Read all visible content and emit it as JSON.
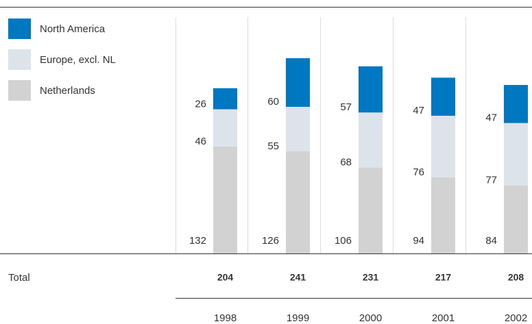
{
  "chart_data": {
    "type": "stacked_bar",
    "categories": [
      "1998",
      "1999",
      "2000",
      "2001",
      "2002"
    ],
    "series": [
      {
        "name": "Netherlands",
        "color": "#d2d2d2",
        "values": [
          132,
          126,
          106,
          94,
          84
        ]
      },
      {
        "name": "Europe, excl. NL",
        "color": "#dce3ea",
        "values": [
          46,
          55,
          68,
          76,
          77
        ]
      },
      {
        "name": "North America",
        "color": "#0078c1",
        "values": [
          26,
          60,
          57,
          47,
          47
        ]
      }
    ],
    "totals_label": "Total",
    "totals": [
      204,
      241,
      231,
      217,
      208
    ],
    "ylim": [
      0,
      241
    ]
  }
}
